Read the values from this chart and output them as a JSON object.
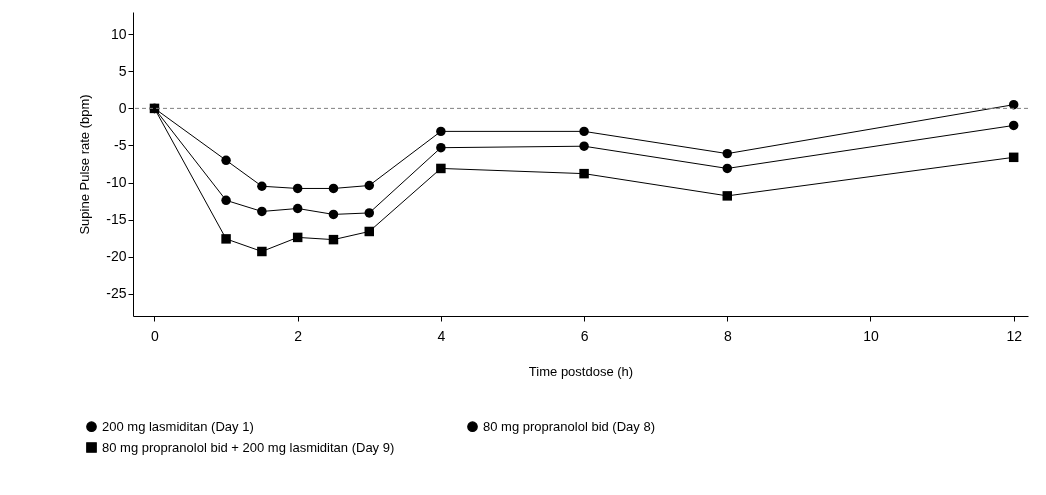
{
  "chart_data": {
    "type": "line",
    "xlabel": "Time postdose (h)",
    "ylabel": "Supine Pulse rate (bpm)",
    "x": [
      0,
      1,
      1.5,
      2,
      2.5,
      3,
      4,
      6,
      8,
      12
    ],
    "series": [
      {
        "name": "200 mg lasmiditan (Day 1)",
        "color": "#000000",
        "marker": "circle",
        "values": [
          0,
          -7.0,
          -10.5,
          -10.8,
          -10.8,
          -10.4,
          -3.1,
          -3.1,
          -6.1,
          0.5
        ]
      },
      {
        "name": "80 mg propranolol bid (Day 8)",
        "color": "#000000",
        "marker": "circle",
        "values": [
          0,
          -12.4,
          -13.9,
          -13.5,
          -14.3,
          -14.1,
          -5.3,
          -5.1,
          -8.1,
          -2.3
        ]
      },
      {
        "name": "80 mg propranolol bid + 200 mg lasmiditan (Day 9)",
        "color": "#000000",
        "marker": "square",
        "values": [
          0,
          -17.6,
          -19.3,
          -17.4,
          -17.7,
          -16.6,
          -8.1,
          -8.8,
          -11.8,
          -6.6
        ]
      }
    ],
    "xlim": [
      -0.3,
      12.2
    ],
    "xticks": [
      0,
      2,
      4,
      6,
      8,
      10,
      12
    ],
    "ylim": [
      -28,
      13
    ],
    "yticks": [
      {
        "value": 10,
        "label": "10"
      },
      {
        "value": 5,
        "label": "5"
      },
      0,
      {
        "value": -5,
        "label": "-5"
      },
      {
        "value": -10,
        "label": "-10"
      },
      {
        "value": -15,
        "label": "-15"
      },
      {
        "value": -20,
        "label": "-20"
      },
      {
        "value": -25,
        "label": "-25"
      }
    ],
    "ref_lines": [
      {
        "axis": "y",
        "value": 0,
        "color": "#808080",
        "line_style": "dashed"
      }
    ],
    "grid": false,
    "legend": "bottom",
    "line_style": "solid"
  }
}
